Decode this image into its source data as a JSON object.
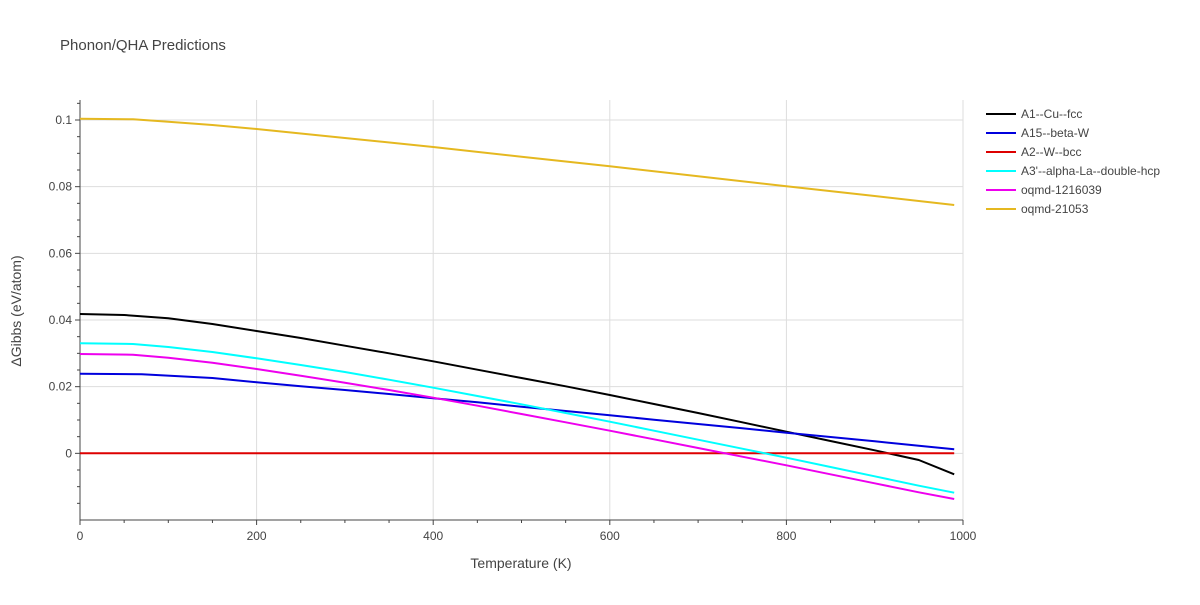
{
  "chart_data": {
    "type": "line",
    "title": "Phonon/QHA Predictions",
    "xlabel": "Temperature (K)",
    "ylabel": "ΔGibbs (eV/atom)",
    "xlim": [
      0,
      1000
    ],
    "ylim": [
      -0.02,
      0.106
    ],
    "xticks": [
      0,
      200,
      400,
      600,
      800,
      1000
    ],
    "yticks": [
      0,
      0.02,
      0.04,
      0.06,
      0.08,
      0.1
    ],
    "ytick_labels": [
      "0",
      "0.02",
      "0.04",
      "0.06",
      "0.08",
      "0.1"
    ],
    "grid": true,
    "legend_position": "top-right",
    "series": [
      {
        "name": "A1--Cu--fcc",
        "color": "#000000",
        "x": [
          0,
          50,
          100,
          150,
          200,
          250,
          300,
          350,
          400,
          450,
          500,
          550,
          600,
          650,
          700,
          750,
          800,
          850,
          900,
          950,
          990
        ],
        "y": [
          0.0418,
          0.0415,
          0.0405,
          0.0388,
          0.0367,
          0.0346,
          0.0323,
          0.03,
          0.0276,
          0.0251,
          0.0226,
          0.0201,
          0.0175,
          0.0148,
          0.0121,
          0.0093,
          0.0065,
          0.0037,
          0.0009,
          -0.002,
          -0.0063
        ]
      },
      {
        "name": "A15--beta-W",
        "color": "#0000dd",
        "x": [
          0,
          70,
          150,
          200,
          250,
          300,
          350,
          400,
          450,
          500,
          550,
          600,
          650,
          700,
          750,
          800,
          850,
          900,
          950,
          990
        ],
        "y": [
          0.0239,
          0.0237,
          0.0226,
          0.0213,
          0.0201,
          0.019,
          0.0178,
          0.0165,
          0.0153,
          0.014,
          0.0127,
          0.0114,
          0.0101,
          0.0088,
          0.0075,
          0.0062,
          0.0049,
          0.0036,
          0.0023,
          0.0012
        ]
      },
      {
        "name": "A2--W--bcc",
        "color": "#dd0000",
        "x": [
          0,
          990
        ],
        "y": [
          0.0,
          0.0
        ]
      },
      {
        "name": "A3'--alpha-La--double-hcp",
        "color": "#00ffff",
        "x": [
          0,
          60,
          100,
          150,
          200,
          250,
          300,
          350,
          400,
          450,
          500,
          550,
          600,
          650,
          700,
          750,
          800,
          850,
          900,
          950,
          990
        ],
        "y": [
          0.033,
          0.0328,
          0.0319,
          0.0304,
          0.0285,
          0.0265,
          0.0244,
          0.0221,
          0.0197,
          0.0172,
          0.0147,
          0.0121,
          0.0095,
          0.0068,
          0.0041,
          0.0014,
          -0.0013,
          -0.0041,
          -0.0069,
          -0.0097,
          -0.0118
        ]
      },
      {
        "name": "oqmd-1216039",
        "color": "#ee00ee",
        "x": [
          0,
          60,
          100,
          150,
          200,
          250,
          300,
          350,
          400,
          450,
          500,
          550,
          600,
          650,
          700,
          750,
          800,
          850,
          900,
          950,
          990
        ],
        "y": [
          0.0298,
          0.0296,
          0.0287,
          0.0272,
          0.0253,
          0.0233,
          0.0212,
          0.019,
          0.0167,
          0.0143,
          0.0118,
          0.0093,
          0.0068,
          0.0042,
          0.0016,
          -0.001,
          -0.0036,
          -0.0063,
          -0.009,
          -0.0117,
          -0.0137
        ]
      },
      {
        "name": "oqmd-21053",
        "color": "#e5b820",
        "x": [
          0,
          60,
          100,
          150,
          200,
          300,
          400,
          500,
          600,
          700,
          800,
          900,
          990
        ],
        "y": [
          0.1004,
          0.1002,
          0.0995,
          0.0985,
          0.0973,
          0.0946,
          0.0919,
          0.089,
          0.0861,
          0.0831,
          0.0801,
          0.0772,
          0.0745
        ]
      }
    ]
  }
}
